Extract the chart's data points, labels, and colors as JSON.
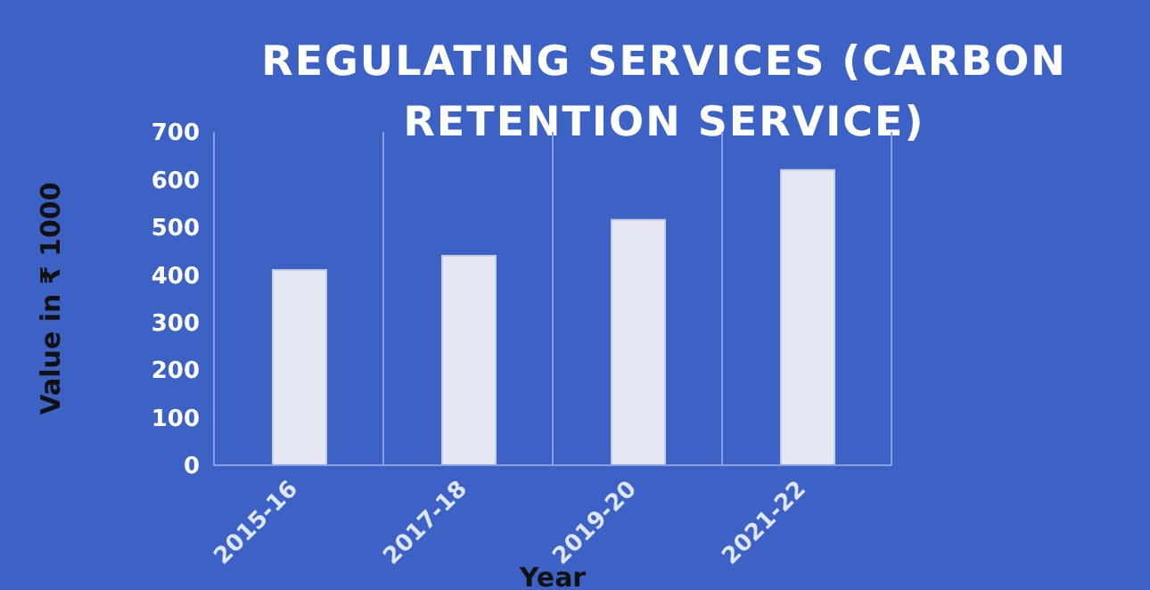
{
  "chart_data": {
    "type": "bar",
    "title": "REGULATING SERVICES (CARBON RETENTION SERVICE)",
    "xlabel": "Year",
    "ylabel": "Value in  ₹ 1000",
    "categories": [
      "2015-16",
      "2017-18",
      "2019-20",
      "2021-22"
    ],
    "values": [
      410,
      440,
      515,
      620
    ],
    "color": "#e4e6f2",
    "ylim": [
      0,
      700
    ],
    "yticks": [
      0,
      100,
      200,
      300,
      400,
      500,
      600,
      700
    ],
    "grid": "x"
  }
}
